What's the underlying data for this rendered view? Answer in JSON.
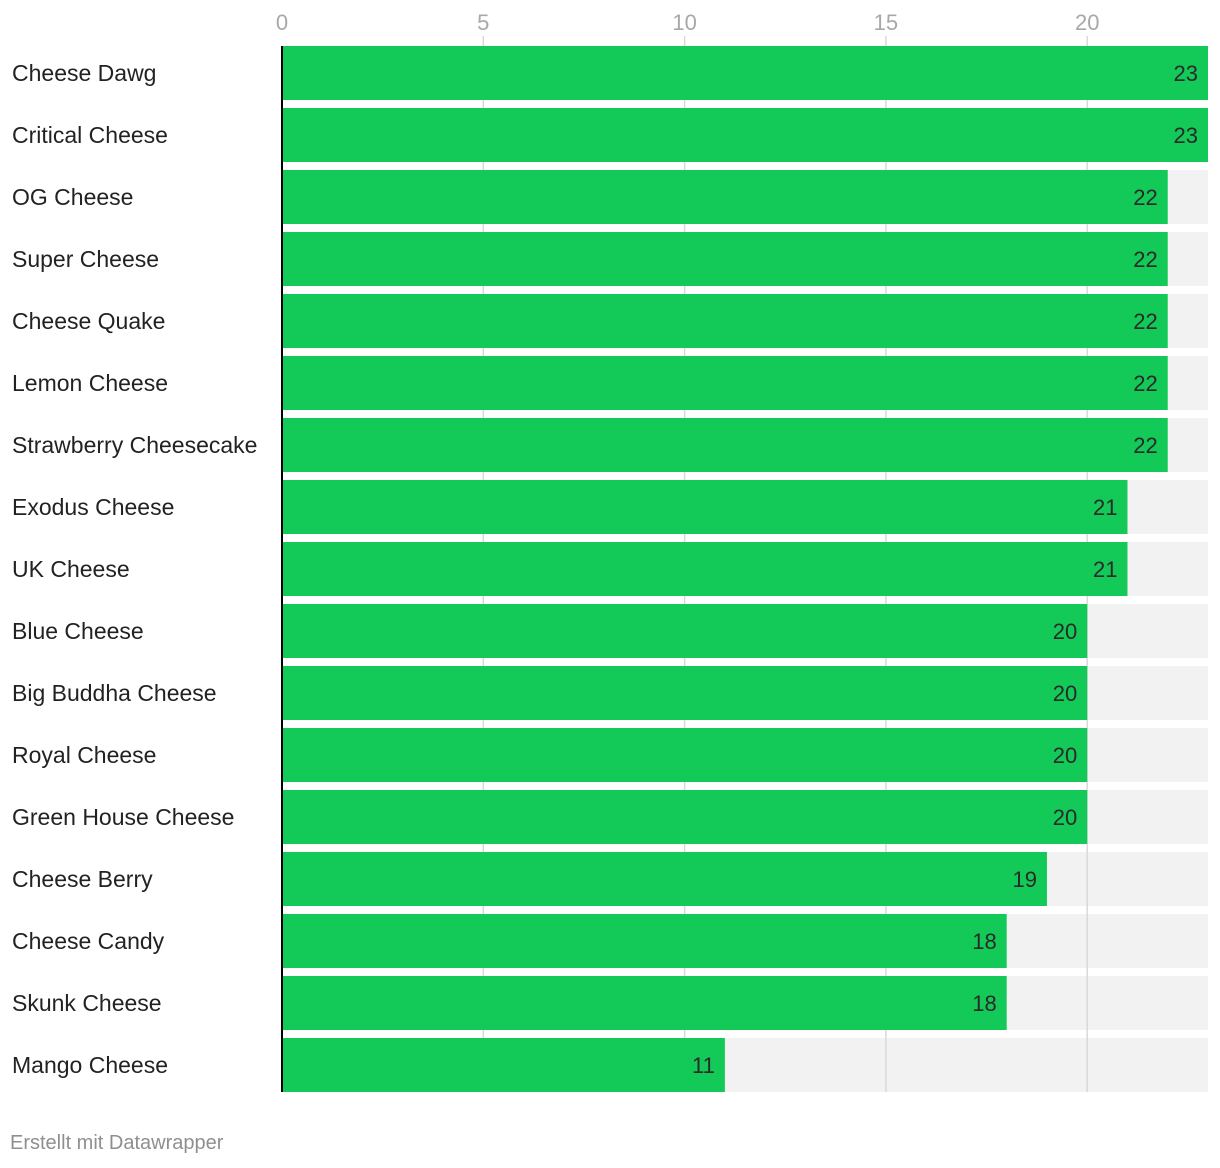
{
  "chart_data": {
    "type": "bar",
    "orientation": "horizontal",
    "title": "",
    "xlabel": "",
    "ylabel": "",
    "categories": [
      "Cheese Dawg",
      "Critical Cheese",
      "OG Cheese",
      "Super Cheese",
      "Cheese Quake",
      "Lemon Cheese",
      "Strawberry Cheesecake",
      "Exodus Cheese",
      "UK Cheese",
      "Blue Cheese",
      "Big Buddha Cheese",
      "Royal Cheese",
      "Green House Cheese",
      "Cheese Berry",
      "Cheese Candy",
      "Skunk Cheese",
      "Mango Cheese"
    ],
    "values": [
      23,
      23,
      22,
      22,
      22,
      22,
      22,
      21,
      21,
      20,
      20,
      20,
      20,
      19,
      18,
      18,
      11
    ],
    "xlim": [
      0,
      23
    ],
    "xticks": [
      0,
      5,
      10,
      15,
      20
    ],
    "grid": true,
    "legend": "none",
    "colors": {
      "bar": "#13c957",
      "background_track": "#f2f2f2",
      "gridline": "#d9d9d9",
      "axis": "#000000"
    }
  },
  "footer": {
    "credit": "Erstellt mit Datawrapper"
  }
}
